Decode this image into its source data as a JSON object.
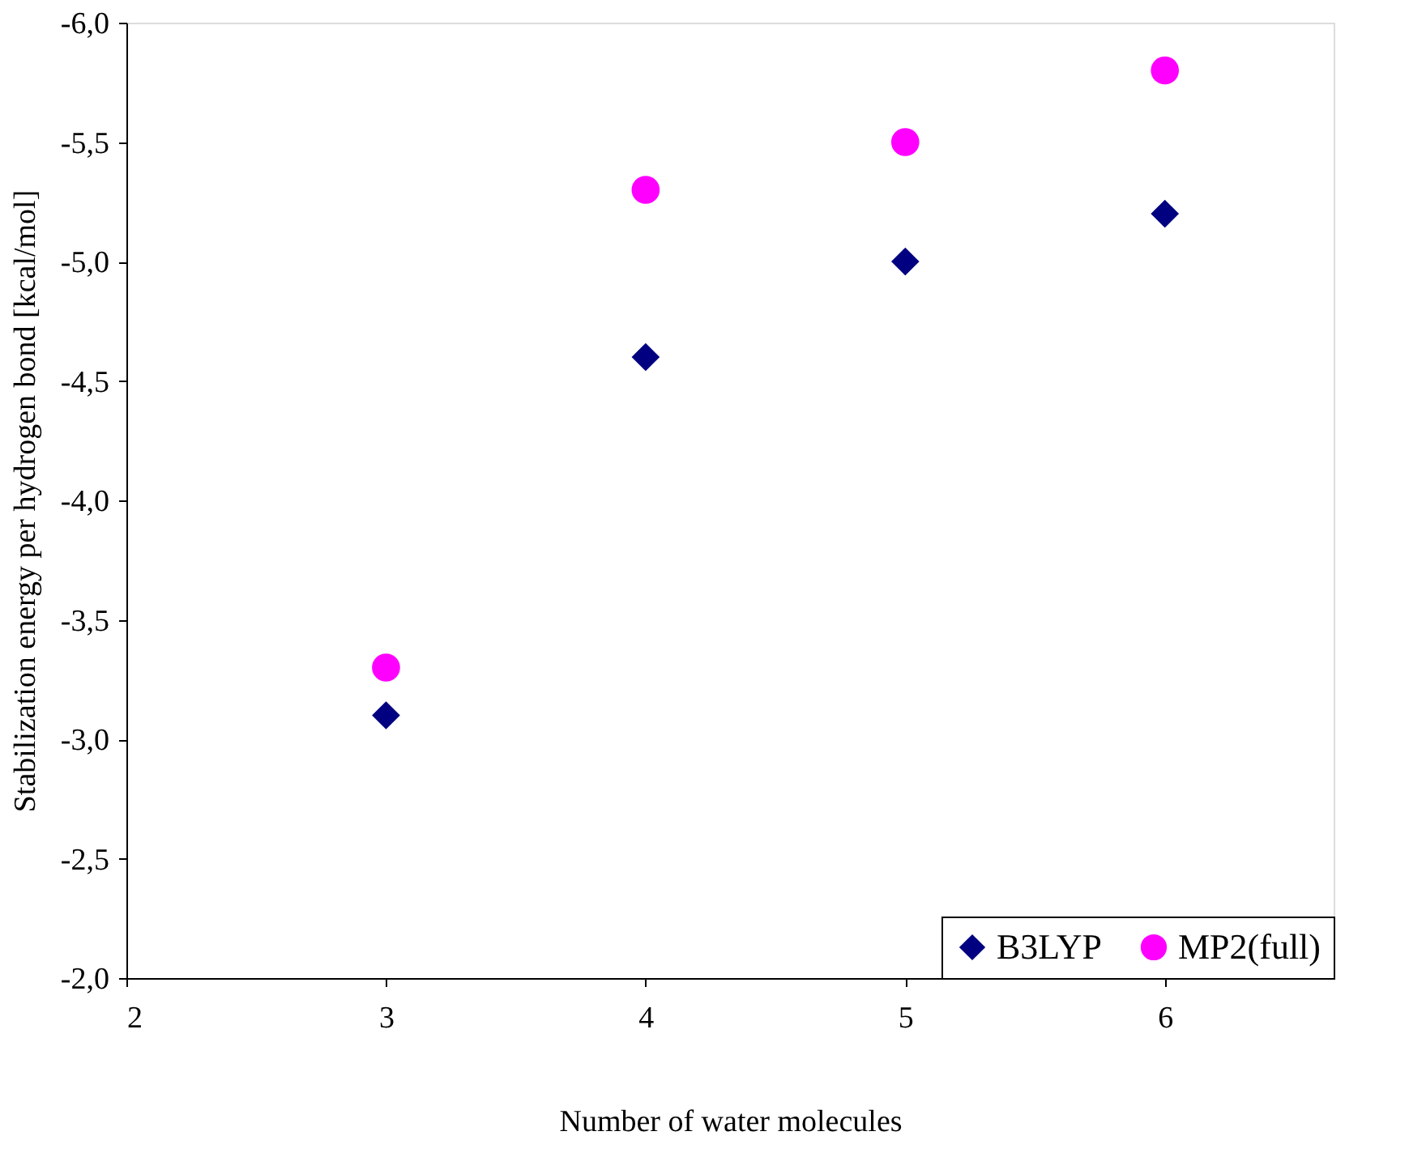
{
  "chart_data": {
    "type": "scatter",
    "xlabel": "Number of water molecules",
    "ylabel": "Stabilization energy per hydrogen bond [kcal/mol]",
    "x": [
      3,
      4,
      5,
      6
    ],
    "series": [
      {
        "name": "B3LYP",
        "color": "#000080",
        "marker": "diamond",
        "values": [
          -3.1,
          -4.6,
          -5.0,
          -5.2
        ]
      },
      {
        "name": "MP2(full)",
        "color": "#ff00ff",
        "marker": "circle",
        "values": [
          -3.3,
          -5.3,
          -5.5,
          -5.8
        ]
      }
    ],
    "xlim": [
      2,
      6.65
    ],
    "xticks": [
      2,
      3,
      4,
      5,
      6
    ],
    "ylim": [
      -2,
      -6
    ],
    "yticks": [
      {
        "value": -2,
        "label": "-2,0"
      },
      {
        "value": -2.5,
        "label": "-2,5"
      },
      {
        "value": -3,
        "label": "-3,0"
      },
      {
        "value": -3.5,
        "label": "-3,5"
      },
      {
        "value": -4,
        "label": "-4,0"
      },
      {
        "value": -4.5,
        "label": "-4,5"
      },
      {
        "value": -5,
        "label": "-5,0"
      },
      {
        "value": -5.5,
        "label": "-5,5"
      },
      {
        "value": -6,
        "label": "-6,0"
      }
    ],
    "grid": false,
    "legend": "bottom right"
  }
}
